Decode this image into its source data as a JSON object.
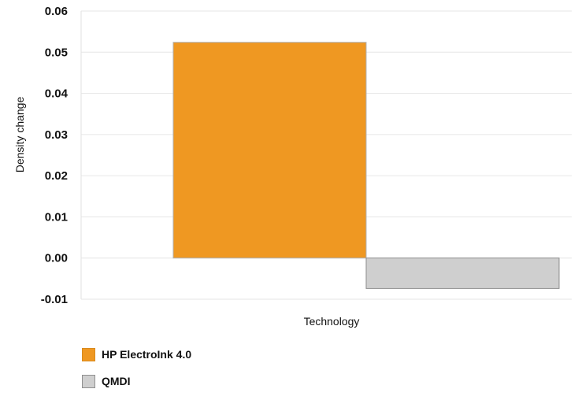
{
  "chart_data": {
    "type": "bar",
    "xlabel": "Technology",
    "ylabel": "Density change",
    "ylim": [
      -0.01,
      0.06
    ],
    "yticks": [
      "0.06",
      "0.05",
      "0.04",
      "0.03",
      "0.02",
      "0.01",
      "0.00",
      "-0.01"
    ],
    "ytick_values": [
      0.06,
      0.05,
      0.04,
      0.03,
      0.02,
      0.01,
      0.0,
      -0.01
    ],
    "grid": true,
    "legend_position": "bottom-left",
    "series": [
      {
        "name": "HP ElectroInk 4.0",
        "values": [
          0.0524
        ],
        "color": "#ef9822",
        "stroke": "#b0b0b0"
      },
      {
        "name": "QMDI",
        "values": [
          -0.0074
        ],
        "color": "#cfcfcf",
        "stroke": "#8f8f8f"
      }
    ]
  }
}
